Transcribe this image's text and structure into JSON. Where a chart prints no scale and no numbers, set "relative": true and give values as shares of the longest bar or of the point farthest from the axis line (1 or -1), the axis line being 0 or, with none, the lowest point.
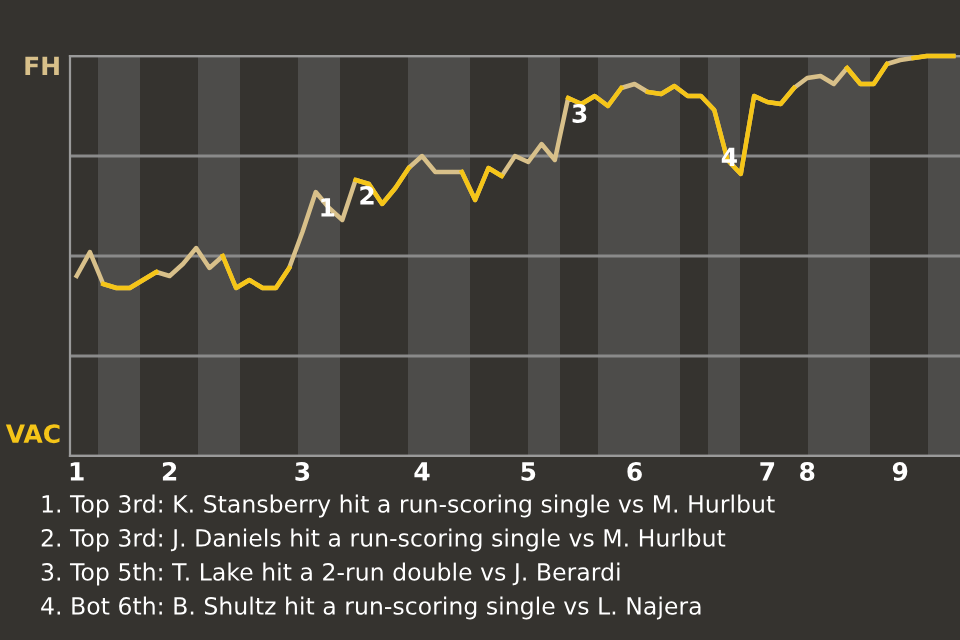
{
  "chart_data": {
    "type": "line",
    "relative": true,
    "categories": [
      "1",
      null,
      null,
      null,
      null,
      null,
      null,
      "2",
      null,
      null,
      null,
      null,
      null,
      null,
      null,
      null,
      null,
      "3",
      null,
      null,
      null,
      null,
      null,
      null,
      null,
      null,
      "4",
      null,
      null,
      null,
      null,
      null,
      null,
      null,
      "5",
      null,
      null,
      null,
      null,
      null,
      null,
      null,
      "6",
      null,
      null,
      null,
      null,
      null,
      null,
      null,
      null,
      null,
      "7",
      null,
      null,
      "8",
      null,
      null,
      null,
      null,
      null,
      null,
      "9",
      null,
      null,
      null,
      null
    ],
    "series": [
      {
        "color": "#d8c08a",
        "values": [
          0.45,
          0.51,
          0.43,
          0.42,
          0.42,
          0.44,
          0.46,
          0.45,
          0.48,
          0.52,
          0.47,
          0.5,
          0.42,
          0.44,
          0.42,
          0.42,
          0.47,
          0.56,
          0.66,
          0.62,
          0.59,
          0.69,
          0.68,
          0.63,
          0.67,
          0.72,
          0.75,
          0.71,
          0.71,
          0.71,
          0.64,
          0.72,
          0.7,
          0.75,
          0.735,
          0.78,
          0.74,
          0.895,
          0.88,
          0.9,
          0.875,
          0.92,
          0.93,
          0.91,
          0.905,
          0.925,
          0.9,
          0.9,
          0.865,
          0.74,
          0.705,
          0.9,
          0.885,
          0.88,
          0.92,
          0.945,
          0.95,
          0.93,
          0.97,
          0.93,
          0.93,
          0.98,
          0.99,
          0.995,
          1,
          1,
          1
        ]
      },
      {
        "color": "#f5c518",
        "values": [
          null,
          null,
          0.43,
          0.42,
          0.42,
          0.44,
          0.46,
          null,
          null,
          null,
          null,
          0.5,
          0.42,
          0.44,
          0.42,
          0.42,
          0.47,
          null,
          null,
          null,
          null,
          0.69,
          0.68,
          0.63,
          0.67,
          0.72,
          null,
          null,
          null,
          0.71,
          0.64,
          0.72,
          0.7,
          null,
          null,
          null,
          null,
          0.895,
          0.88,
          0.9,
          0.875,
          0.92,
          null,
          0.91,
          0.905,
          0.925,
          0.9,
          0.9,
          0.865,
          0.74,
          0.705,
          0.9,
          0.885,
          0.88,
          0.92,
          null,
          null,
          null,
          0.97,
          0.93,
          0.93,
          0.98,
          null,
          0.995,
          1,
          1,
          1
        ]
      }
    ],
    "grid": "y",
    "legend": false,
    "marker": "none",
    "line_style": "solid",
    "annotations": [
      {
        "text": "1",
        "y": 0.66
      },
      {
        "text": "2",
        "y": 0.69
      },
      {
        "text": "3",
        "y": 0.895
      },
      {
        "text": "4",
        "y": 0.705
      },
      "FH",
      "VAC",
      "1. Top 3rd: K. Stansberry hit a run-scoring single vs M. Hurlbut",
      "2. Top 3rd: J. Daniels hit a run-scoring single vs M. Hurlbut",
      "3. Top 5th: T. Lake hit a 2-run double vs J. Berardi",
      "4. Bot 6th: B. Shultz hit a run-scoring single vs L. Najera"
    ]
  }
}
